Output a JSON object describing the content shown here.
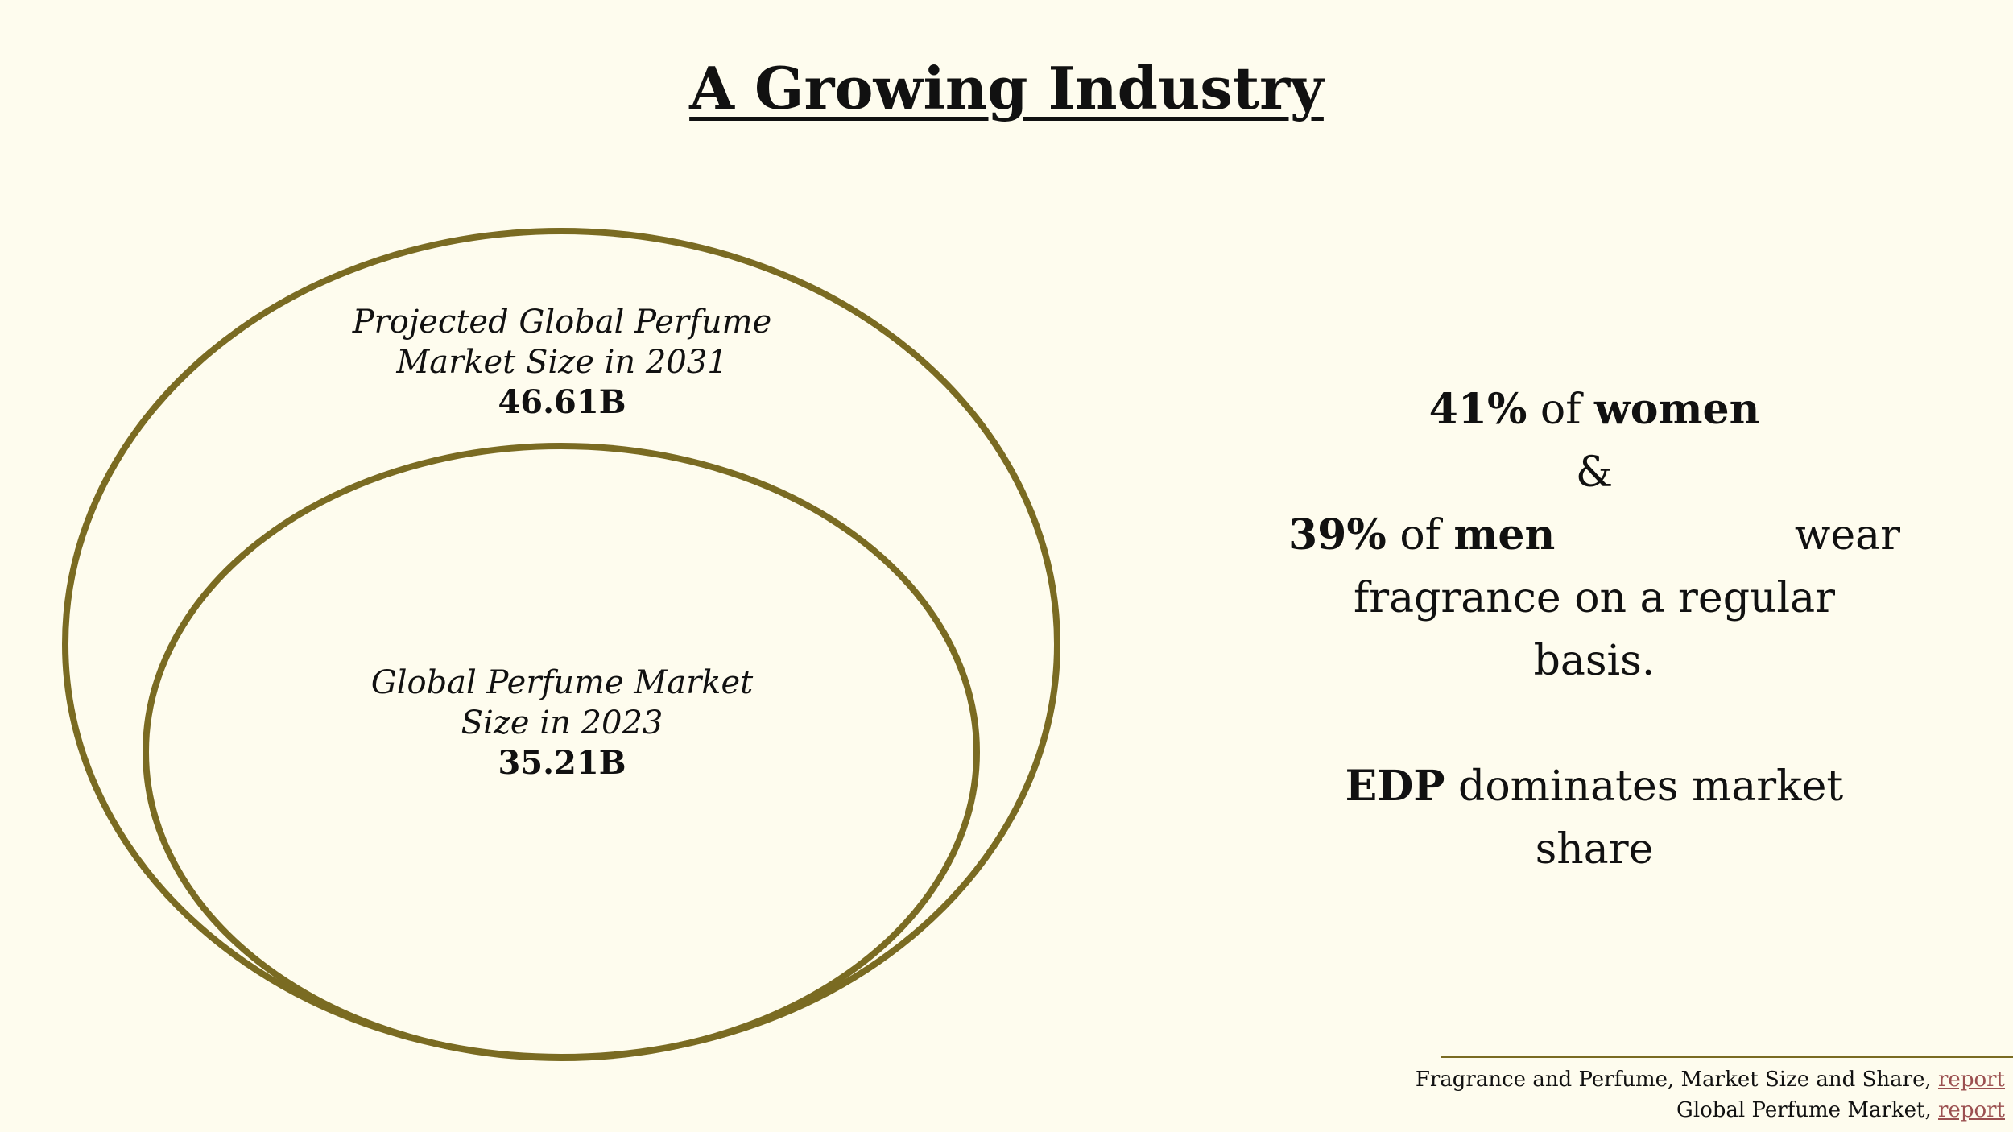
{
  "slide": {
    "title": "A Growing Industry",
    "accent_color": "#7a6b22",
    "background_color": "#fefcee"
  },
  "venn": {
    "outer": {
      "caption_line1": "Projected Global Perfume",
      "caption_line2": "Market Size in 2031",
      "value": "46.61B"
    },
    "inner": {
      "caption_line1": "Global Perfume Market",
      "caption_line2": "Size in 2023",
      "value": "35.21B"
    }
  },
  "stats": {
    "women_pct": "41%",
    "of1": "of",
    "women": "women",
    "amp": "&",
    "men_pct": "39%",
    "of2": "of",
    "men": "men",
    "wear": "wear",
    "line2": "fragrance on a regular basis.",
    "edp": "EDP",
    "edp_rest": "dominates market share"
  },
  "footnotes": [
    {
      "text": "Fragrance and Perfume, Market Size and Share, ",
      "link": "report"
    },
    {
      "text": "Global Perfume Market, ",
      "link": "report"
    }
  ]
}
